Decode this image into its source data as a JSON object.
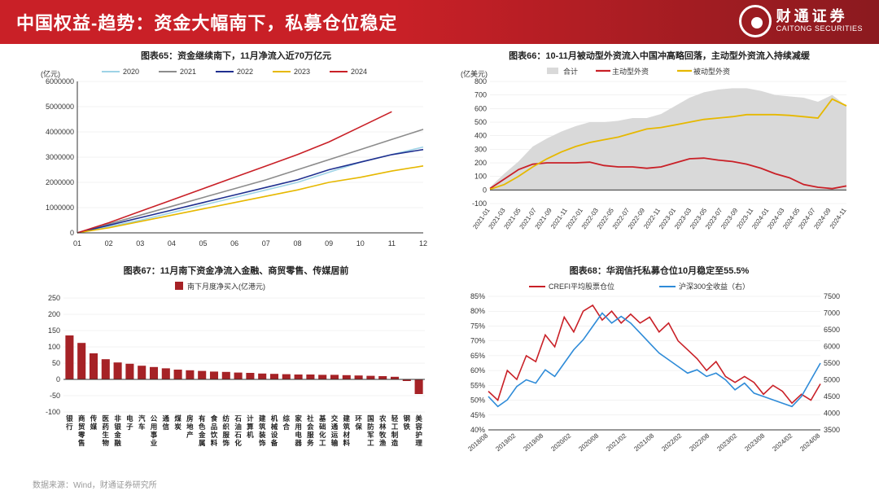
{
  "header": {
    "title": "中国权益-趋势：资金大幅南下，私募仓位稳定",
    "brand_cn": "财通证券",
    "brand_en": "CAITONG SECURITIES"
  },
  "footer": {
    "source": "数据来源：Wind，财通证券研究所"
  },
  "chart65": {
    "type": "line",
    "title": "图表65：资金继续南下，11月净流入近70万亿元",
    "y_axis_label": "(亿元)",
    "ylim": [
      0,
      6000000
    ],
    "ytick_step": 1000000,
    "x_ticks": [
      "01",
      "02",
      "03",
      "04",
      "05",
      "06",
      "07",
      "08",
      "09",
      "10",
      "11",
      "12"
    ],
    "grid_color": "#e6e6e6",
    "axis_color": "#333333",
    "label_fontsize": 9,
    "line_width": 1.6,
    "legend_pos": "top",
    "series": [
      {
        "name": "2020",
        "color": "#9ed3e6",
        "values": [
          0,
          250000,
          500000,
          800000,
          1100000,
          1400000,
          1700000,
          2000000,
          2400000,
          2800000,
          3100000,
          3400000
        ]
      },
      {
        "name": "2021",
        "color": "#8c8c8c",
        "values": [
          0,
          350000,
          700000,
          1050000,
          1400000,
          1750000,
          2100000,
          2500000,
          2900000,
          3300000,
          3700000,
          4100000
        ]
      },
      {
        "name": "2022",
        "color": "#1f2f8f",
        "values": [
          0,
          300000,
          600000,
          900000,
          1200000,
          1500000,
          1800000,
          2100000,
          2500000,
          2800000,
          3100000,
          3300000
        ]
      },
      {
        "name": "2023",
        "color": "#e6b800",
        "values": [
          0,
          200000,
          450000,
          700000,
          950000,
          1200000,
          1450000,
          1700000,
          2000000,
          2200000,
          2450000,
          2650000
        ]
      },
      {
        "name": "2024",
        "color": "#c92027",
        "values": [
          0,
          400000,
          850000,
          1300000,
          1750000,
          2200000,
          2650000,
          3100000,
          3600000,
          4200000,
          4800000
        ]
      }
    ]
  },
  "chart66": {
    "type": "area-line",
    "title": "图表66：10-11月被动型外资流入中国冲高略回落，主动型外资流入持续减缓",
    "y_axis_label": "(亿美元)",
    "ylim": [
      -100,
      800
    ],
    "ytick_step": 100,
    "grid_color": "#e6e6e6",
    "axis_color": "#333333",
    "label_fontsize": 9,
    "line_width": 1.8,
    "legend_pos": "top",
    "x_labels": [
      "2021-01",
      "2021-03",
      "2021-05",
      "2021-07",
      "2021-09",
      "2021-11",
      "2022-01",
      "2022-03",
      "2022-05",
      "2022-07",
      "2022-09",
      "2022-11",
      "2023-01",
      "2023-03",
      "2023-05",
      "2023-07",
      "2023-09",
      "2023-11",
      "2024-01",
      "2024-03",
      "2024-05",
      "2024-07",
      "2024-09",
      "2024-11"
    ],
    "series": [
      {
        "name": "合计",
        "color": "#d9d9d9",
        "fill": true,
        "values": [
          20,
          120,
          210,
          320,
          380,
          430,
          470,
          500,
          500,
          510,
          530,
          530,
          560,
          620,
          680,
          720,
          740,
          750,
          750,
          730,
          700,
          690,
          680,
          650,
          700,
          620
        ]
      },
      {
        "name": "主动型外资",
        "color": "#c92027",
        "values": [
          10,
          80,
          150,
          190,
          200,
          200,
          200,
          205,
          180,
          170,
          170,
          160,
          170,
          200,
          230,
          235,
          220,
          210,
          190,
          160,
          120,
          90,
          40,
          20,
          10,
          30
        ]
      },
      {
        "name": "被动型外资",
        "color": "#e6b800",
        "values": [
          5,
          40,
          100,
          170,
          230,
          280,
          320,
          350,
          370,
          390,
          420,
          450,
          460,
          480,
          500,
          520,
          530,
          540,
          555,
          555,
          555,
          550,
          540,
          530,
          670,
          620
        ]
      }
    ]
  },
  "chart67": {
    "type": "bar",
    "title": "图表67：11月南下资金净流入金融、商贸零售、传媒居前",
    "legend_label": "南下月度净买入(亿港元)",
    "legend_color": "#a62226",
    "ylim": [
      -100,
      250
    ],
    "ytick_step": 50,
    "grid_color": "#e6e6e6",
    "axis_color": "#333333",
    "label_fontsize": 9,
    "bar_color": "#a62226",
    "bar_width": 0.68,
    "categories": [
      "银行",
      "商贸零售",
      "传媒",
      "医药生物",
      "非银金融",
      "电子",
      "汽车",
      "公用事业",
      "通信",
      "煤炭",
      "房地产",
      "有色金属",
      "食品饮料",
      "纺织服饰",
      "石油石化",
      "计算机",
      "建筑装饰",
      "机械设备",
      "综合",
      "家用电器",
      "社会服务",
      "基础化工",
      "交通运输",
      "建筑材料",
      "环保",
      "国防军工",
      "农林牧渔",
      "轻工制造",
      "钢铁",
      "美容护理"
    ],
    "values": [
      135,
      112,
      80,
      62,
      52,
      48,
      42,
      38,
      34,
      30,
      28,
      26,
      24,
      23,
      21,
      20,
      18,
      17,
      16,
      15,
      15,
      14,
      14,
      13,
      12,
      11,
      10,
      8,
      -5,
      -45
    ]
  },
  "chart68": {
    "type": "dual-line",
    "title": "图表68：华润信托私募仓位10月稳定至55.5%",
    "ylim_left": [
      40,
      85
    ],
    "ytick_left_step": 5,
    "ylabel_left_suffix": "%",
    "ylim_right": [
      3500,
      7500
    ],
    "ytick_right_step": 500,
    "grid_color": "#e6e6e6",
    "axis_color": "#333333",
    "label_fontsize": 9,
    "line_width": 1.6,
    "legend_pos": "top",
    "x_labels": [
      "2018/08",
      "2019/02",
      "2019/08",
      "2020/02",
      "2020/08",
      "2021/02",
      "2021/08",
      "2022/02",
      "2022/08",
      "2023/02",
      "2023/08",
      "2024/02",
      "2024/08"
    ],
    "series": [
      {
        "name": "CREFI平均股票仓位",
        "color": "#c92027",
        "axis": "left",
        "values": [
          53,
          50,
          60,
          57,
          65,
          63,
          72,
          68,
          78,
          73,
          80,
          82,
          77,
          80,
          76,
          79,
          76,
          78,
          73,
          76,
          70,
          67,
          64,
          60,
          63,
          58,
          56,
          58,
          56,
          52,
          55,
          53,
          49,
          52,
          50,
          55.5
        ]
      },
      {
        "name": "沪深300全收益（右）",
        "color": "#2e8bd8",
        "axis": "right",
        "values": [
          4500,
          4200,
          4400,
          4800,
          5000,
          4900,
          5300,
          5100,
          5500,
          5900,
          6200,
          6600,
          7000,
          6700,
          6900,
          6700,
          6400,
          6100,
          5800,
          5600,
          5400,
          5200,
          5300,
          5100,
          5200,
          5000,
          4700,
          4900,
          4600,
          4500,
          4400,
          4300,
          4200,
          4500,
          5000,
          5500
        ]
      }
    ]
  }
}
